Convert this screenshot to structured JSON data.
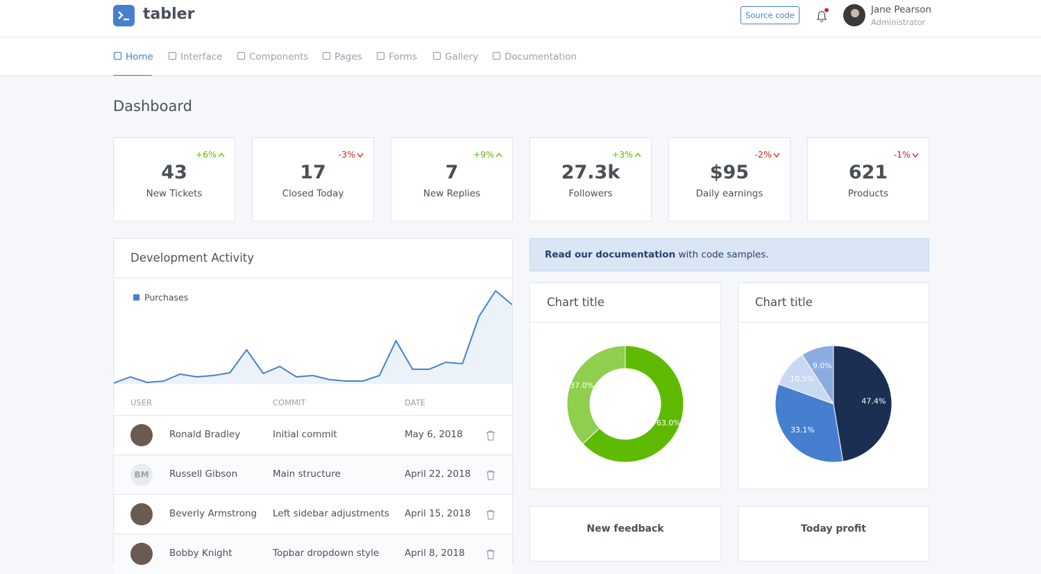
{
  "header": {
    "brand": "tabler",
    "source_code": "Source code",
    "user": {
      "name": "Jane Pearson",
      "role": "Administrator"
    }
  },
  "nav": {
    "items": [
      "Home",
      "Interface",
      "Components",
      "Pages",
      "Forms",
      "Gallery",
      "Documentation"
    ]
  },
  "page_title": "Dashboard",
  "stats": [
    {
      "change": "+6%",
      "value": "43",
      "label": "New Tickets"
    },
    {
      "change": "-3%",
      "value": "17",
      "label": "Closed Today"
    },
    {
      "change": "+9%",
      "value": "7",
      "label": "New Replies"
    },
    {
      "change": "+3%",
      "value": "27.3k",
      "label": "Followers"
    },
    {
      "change": "-2%",
      "value": "$95",
      "label": "Daily earnings"
    },
    {
      "change": "-1%",
      "value": "621",
      "label": "Products"
    }
  ],
  "activity": {
    "title": "Development Activity",
    "chart": {
      "type": "line",
      "series": [
        {
          "name": "Purchases",
          "color": "#467fcf",
          "values": [
            1,
            10,
            2,
            4,
            14,
            10,
            12,
            16,
            49,
            15,
            25,
            10,
            12,
            6,
            4,
            4,
            12,
            62,
            21,
            21,
            31,
            29,
            97,
            134,
            114
          ]
        }
      ]
    },
    "table": {
      "headers": [
        "USER",
        "COMMIT",
        "DATE"
      ],
      "rows": [
        {
          "user": "Ronald Bradley",
          "commit": "Initial commit",
          "date": "May 6, 2018"
        },
        {
          "initials": "BM",
          "user": "Russell Gibson",
          "commit": "Main structure",
          "date": "April 22, 2018"
        },
        {
          "user": "Beverly Armstrong",
          "commit": "Left sidebar adjustments",
          "date": "April 15, 2018"
        },
        {
          "user": "Bobby Knight",
          "commit": "Topbar dropdown style",
          "date": "April 8, 2018"
        }
      ]
    }
  },
  "alert": {
    "bold": "Read our documentation",
    "text": "with code samples."
  },
  "donut_chart": {
    "type": "donut",
    "title": "Chart title",
    "values": [
      63,
      37
    ],
    "value_labels": [
      "63.0%",
      "37.0%"
    ],
    "colors": [
      "#5eba00",
      "#8ecf4d"
    ]
  },
  "pie_chart": {
    "type": "pie",
    "title": "Chart title",
    "values": [
      47.4,
      33.1,
      10.5,
      9.0
    ],
    "value_labels": [
      "47.4%",
      "33.1%",
      "10.5%",
      "9.0%"
    ],
    "colors": [
      "#1b2f53",
      "#467fcf",
      "#c8d9f1",
      "#8aace0"
    ]
  },
  "small_cards": [
    "New feedback",
    "Today profit"
  ]
}
